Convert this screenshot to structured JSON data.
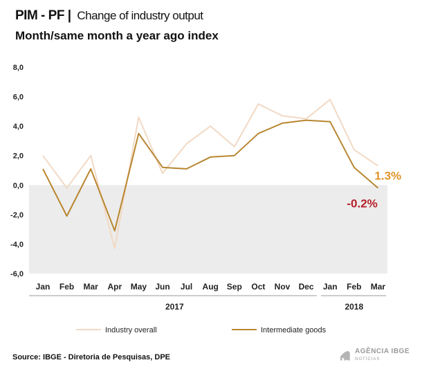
{
  "header": {
    "code": "PIM - PF",
    "separator": "|",
    "subject": "Change of industry output",
    "index_title": "Month/same month a year ago index"
  },
  "chart_data": {
    "type": "line",
    "categories": [
      "Jan",
      "Feb",
      "Mar",
      "Apr",
      "May",
      "Jun",
      "Jul",
      "Aug",
      "Sep",
      "Oct",
      "Nov",
      "Dec",
      "Jan",
      "Feb",
      "Mar"
    ],
    "year_groups": [
      {
        "label": "2017",
        "from": 0,
        "to": 11
      },
      {
        "label": "2018",
        "from": 12,
        "to": 14
      }
    ],
    "series": [
      {
        "name": "Industry overall",
        "color": "#f2d9c4",
        "values": [
          2.0,
          -0.2,
          2.0,
          -4.3,
          4.6,
          0.8,
          2.8,
          4.0,
          2.6,
          5.5,
          4.7,
          4.5,
          5.8,
          2.4,
          1.3
        ]
      },
      {
        "name": "Intermediate goods",
        "color": "#b8862f",
        "values": [
          1.1,
          -2.1,
          1.1,
          -3.1,
          3.5,
          1.2,
          1.1,
          1.9,
          2.0,
          3.5,
          4.2,
          4.4,
          4.3,
          1.2,
          -0.2
        ]
      }
    ],
    "annotations": [
      {
        "text": "1.3%",
        "series": 0,
        "color": "#e0962a"
      },
      {
        "text": "-0.2%",
        "series": 1,
        "color": "#b5202a"
      }
    ],
    "ylim": [
      -6,
      8
    ],
    "yticks": [
      "8,0",
      "6,0",
      "4,0",
      "2,0",
      "0,0",
      "-2,0",
      "-4,0",
      "-6,0"
    ],
    "ytick_values": [
      8,
      6,
      4,
      2,
      0,
      -2,
      -4,
      -6
    ],
    "negative_region_shaded": true,
    "negative_region_color": "#ececec",
    "legend_position": "bottom"
  },
  "footer": {
    "source": "Source: IBGE - Diretoria de Pesquisas, DPE",
    "logo_text": "AGÊNCIA IBGE",
    "logo_sub": "NOTÍCIAS"
  }
}
